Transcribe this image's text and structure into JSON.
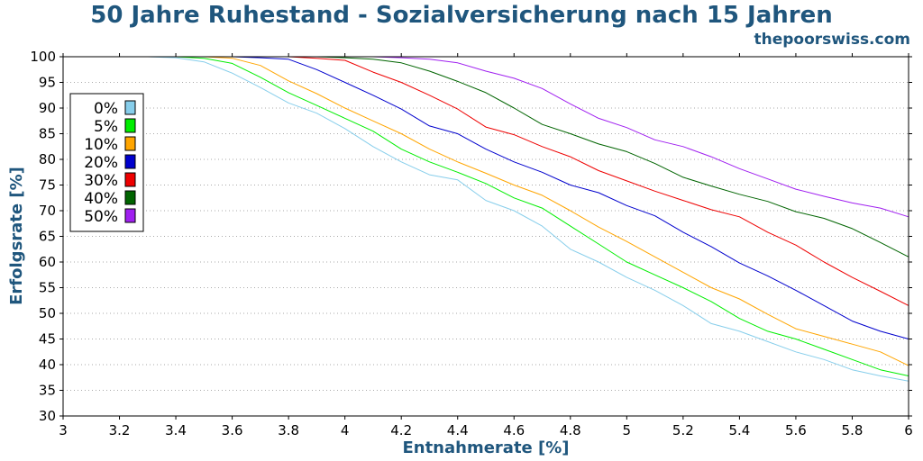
{
  "chart_data": {
    "type": "line",
    "title": "50 Jahre Ruhestand - Sozialversicherung nach 15 Jahren",
    "subtitle": "thepoorswiss.com",
    "xlabel": "Entnahmerate [%]",
    "ylabel": "Erfolgsrate [%]",
    "xlim": [
      3,
      6
    ],
    "ylim": [
      30,
      100
    ],
    "xticks": [
      "3",
      "3.2",
      "3.4",
      "3.6",
      "3.8",
      "4",
      "4.2",
      "4.4",
      "4.6",
      "4.8",
      "5",
      "5.2",
      "5.4",
      "5.6",
      "5.8",
      "6"
    ],
    "yticks": [
      "30",
      "35",
      "40",
      "45",
      "50",
      "55",
      "60",
      "65",
      "70",
      "75",
      "80",
      "85",
      "90",
      "95",
      "100"
    ],
    "grid": "horizontal-dotted",
    "legend_position": "top-left",
    "x": [
      3.0,
      3.1,
      3.2,
      3.3,
      3.4,
      3.5,
      3.6,
      3.7,
      3.8,
      3.9,
      4.0,
      4.1,
      4.2,
      4.3,
      4.4,
      4.5,
      4.6,
      4.7,
      4.8,
      4.9,
      5.0,
      5.1,
      5.2,
      5.3,
      5.4,
      5.5,
      5.6,
      5.7,
      5.8,
      5.9,
      6.0
    ],
    "series": [
      {
        "name": "0%",
        "color": "#87ceeb",
        "values": [
          100,
          100,
          100,
          100,
          99.8,
          99,
          96.8,
          94,
          91,
          89,
          86,
          82.5,
          79.5,
          77,
          76,
          72,
          70,
          67,
          62.5,
          60,
          57,
          54.5,
          51.5,
          48,
          46.5,
          44.5,
          42.5,
          41,
          39,
          37.8,
          36.8
        ]
      },
      {
        "name": "5%",
        "color": "#00ee00",
        "values": [
          100,
          100,
          100,
          100,
          100,
          99.7,
          98.7,
          96,
          93,
          90.5,
          88,
          85.5,
          82,
          79.5,
          77.5,
          75.3,
          72.5,
          70.5,
          67,
          63.5,
          60,
          57.5,
          55,
          52.3,
          49,
          46.5,
          45,
          43,
          41,
          39,
          37.8
        ]
      },
      {
        "name": "10%",
        "color": "#ffa500",
        "values": [
          100,
          100,
          100,
          100,
          100,
          100,
          99.7,
          98.3,
          95.3,
          92.8,
          90,
          87.5,
          85,
          82,
          79.5,
          77.3,
          75,
          73,
          70,
          66.8,
          64,
          61,
          58,
          55,
          52.8,
          49.8,
          47,
          45.5,
          44,
          42.5,
          39.8
        ]
      },
      {
        "name": "20%",
        "color": "#0000cd",
        "values": [
          100,
          100,
          100,
          100,
          100,
          100,
          100,
          99.8,
          99.5,
          97.5,
          95,
          92.5,
          89.8,
          86.5,
          85,
          82,
          79.5,
          77.5,
          75,
          73.5,
          71,
          69,
          65.8,
          63,
          59.8,
          57.3,
          54.5,
          51.5,
          48.5,
          46.5,
          45
        ]
      },
      {
        "name": "30%",
        "color": "#ee0000",
        "values": [
          100,
          100,
          100,
          100,
          100,
          100,
          100,
          100,
          100,
          99.7,
          99.3,
          97,
          95,
          92.5,
          89.8,
          86.3,
          84.8,
          82.5,
          80.5,
          77.8,
          75.8,
          73.8,
          72,
          70.2,
          68.8,
          65.8,
          63.3,
          60,
          57,
          54.3,
          51.5
        ]
      },
      {
        "name": "40%",
        "color": "#006400",
        "values": [
          100,
          100,
          100,
          100,
          100,
          100,
          100,
          100,
          100,
          100,
          99.8,
          99.5,
          98.8,
          97.2,
          95.2,
          93,
          90,
          86.8,
          85,
          83,
          81.5,
          79.2,
          76.5,
          74.8,
          73.2,
          71.8,
          69.8,
          68.5,
          66.5,
          63.8,
          61
        ]
      },
      {
        "name": "50%",
        "color": "#a020f0",
        "values": [
          100,
          100,
          100,
          100,
          100,
          100,
          100,
          100,
          100,
          100,
          100,
          100,
          99.8,
          99.5,
          98.8,
          97.2,
          95.8,
          93.8,
          90.8,
          88,
          86.2,
          83.8,
          82.5,
          80.5,
          78.2,
          76.2,
          74.2,
          72.8,
          71.5,
          70.5,
          68.8
        ]
      }
    ]
  }
}
